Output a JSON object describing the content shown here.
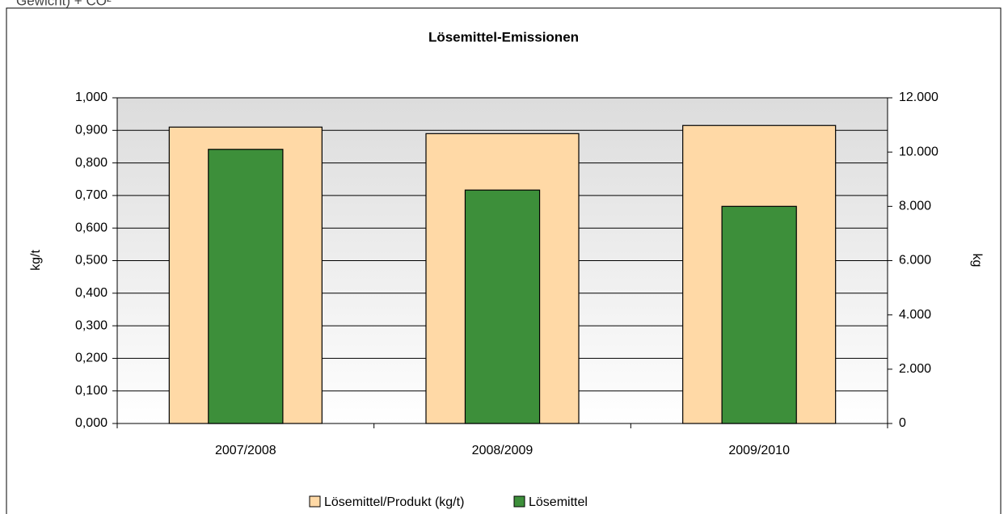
{
  "caption_fragment": "Gewicht) + CO²",
  "chart_data": {
    "type": "bar",
    "title": "Lösemittel-Emissionen",
    "categories": [
      "2007/2008",
      "2008/2009",
      "2009/2010"
    ],
    "series": [
      {
        "name": "Lösemittel/Produkt (kg/t)",
        "color": "#ffd9a6",
        "values": [
          0.91,
          0.89,
          0.915
        ]
      },
      {
        "name": "Lösemittel",
        "color": "#3d8f3a",
        "axis": "y2",
        "values": [
          10100,
          8600,
          8000
        ]
      }
    ],
    "ylabel": "kg/t",
    "y2label": "kg",
    "ylim": [
      0,
      1
    ],
    "yticks": [
      {
        "value": 0,
        "label": "0,000"
      },
      {
        "value": 0.1,
        "label": "0,100"
      },
      {
        "value": 0.2,
        "label": "0,200"
      },
      {
        "value": 0.3,
        "label": "0,300"
      },
      {
        "value": 0.4,
        "label": "0,400"
      },
      {
        "value": 0.5,
        "label": "0,500"
      },
      {
        "value": 0.6,
        "label": "0,600"
      },
      {
        "value": 0.7,
        "label": "0,700"
      },
      {
        "value": 0.8,
        "label": "0,800"
      },
      {
        "value": 0.9,
        "label": "0,900"
      },
      {
        "value": 1,
        "label": "1,000"
      }
    ],
    "y2lim": [
      0,
      12000
    ],
    "y2ticks": [
      0,
      {
        "value": 2000,
        "label": "2.000"
      },
      {
        "value": 4000,
        "label": "4.000"
      },
      {
        "value": 6000,
        "label": "6.000"
      },
      {
        "value": 8000,
        "label": "8.000"
      },
      {
        "value": 10000,
        "label": "10.000"
      },
      {
        "value": 12000,
        "label": "12.000"
      }
    ],
    "grid": true,
    "legend": "bottom"
  }
}
